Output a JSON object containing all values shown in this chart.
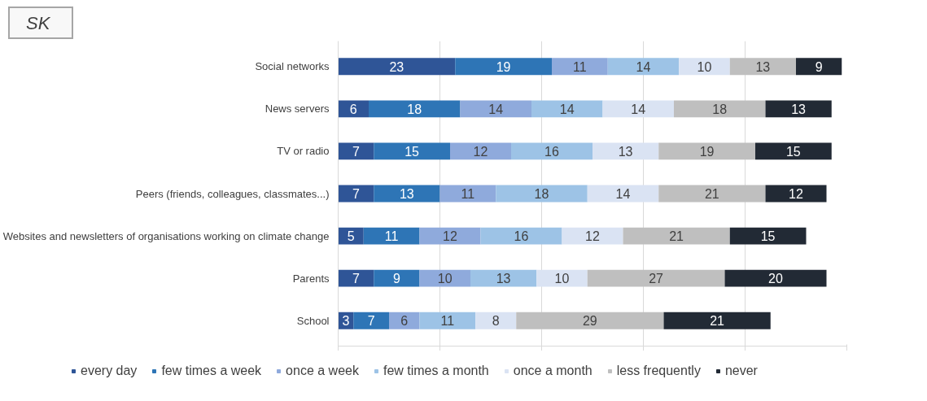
{
  "chart_data": {
    "type": "bar",
    "orientation": "horizontal",
    "stacked": true,
    "data_labels": true,
    "grid": "x",
    "legend": "bottom",
    "tick_labels": "y",
    "annotations": [
      "SK"
    ],
    "categories": [
      "Social networks",
      "News servers",
      "TV or radio",
      "Peers (friends, colleagues, classmates...)",
      "Websites and newsletters of organisations working on climate change",
      "Parents",
      "School"
    ],
    "xlim": [
      0,
      100
    ],
    "xticks": [
      {
        "value": 0,
        "label": null
      },
      {
        "value": 20,
        "label": null
      },
      {
        "value": 40,
        "label": null
      },
      {
        "value": 60,
        "label": null
      },
      {
        "value": 80,
        "label": null
      },
      {
        "value": 100,
        "label": null
      }
    ],
    "series": [
      {
        "name": "every day",
        "color": "#2f5597",
        "values": [
          23,
          6,
          7,
          7,
          5,
          7,
          3
        ]
      },
      {
        "name": "few times a week",
        "color": "#2e75b6",
        "values": [
          19,
          18,
          15,
          13,
          11,
          9,
          7
        ]
      },
      {
        "name": "once a week",
        "color": "#8faadc",
        "values": [
          11,
          14,
          12,
          11,
          12,
          10,
          6
        ]
      },
      {
        "name": "few times a month",
        "color": "#9dc3e6",
        "values": [
          14,
          14,
          16,
          18,
          16,
          13,
          11
        ]
      },
      {
        "name": "once a month",
        "color": "#dae3f3",
        "values": [
          10,
          14,
          13,
          14,
          12,
          10,
          8
        ]
      },
      {
        "name": "less frequently",
        "color": "#bfbfbf",
        "values": [
          13,
          18,
          19,
          21,
          21,
          27,
          29
        ]
      },
      {
        "name": "never",
        "color": "#222a35",
        "values": [
          9,
          13,
          15,
          12,
          15,
          20,
          21
        ]
      }
    ]
  }
}
